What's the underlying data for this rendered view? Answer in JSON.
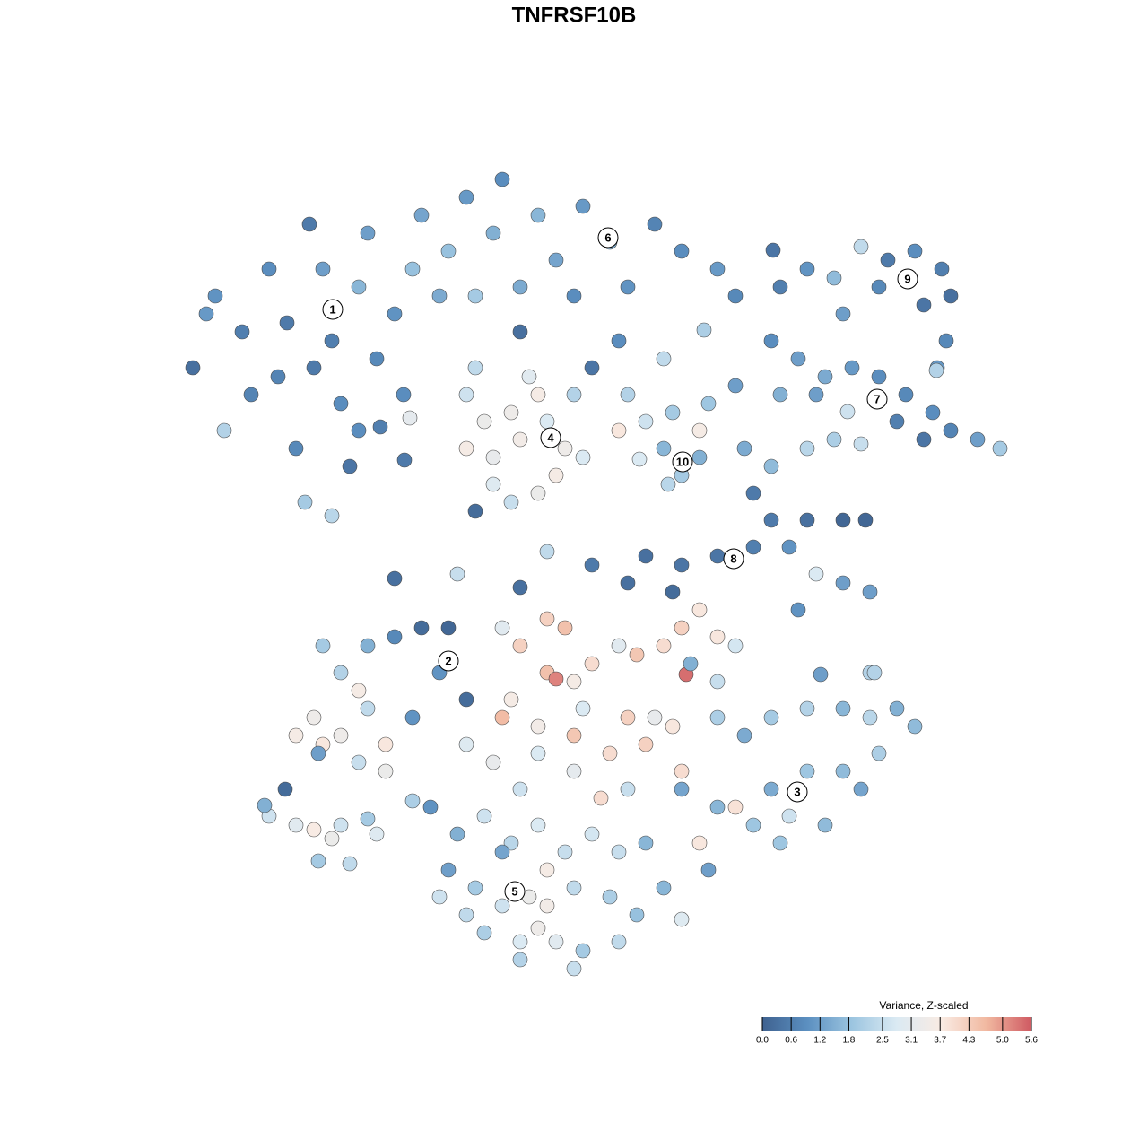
{
  "chart_data": {
    "type": "scatter",
    "title": "TNFRSF10B",
    "xlim": [
      0,
      128
    ],
    "ylim": [
      128,
      0
    ],
    "x": [
      21.5,
      24,
      25,
      27,
      30,
      31,
      33,
      34.5,
      36,
      37,
      38,
      34,
      37,
      40,
      41,
      42,
      44,
      46,
      45,
      39,
      32,
      28,
      23,
      35,
      40,
      47,
      50,
      52,
      55,
      56,
      60,
      62,
      65,
      68,
      70,
      73,
      76,
      80,
      82,
      64,
      58,
      53,
      49,
      69,
      66,
      58,
      74,
      78.5,
      87,
      90,
      93,
      96,
      99,
      102,
      105,
      106,
      103,
      98,
      105.5,
      94,
      86,
      89,
      92,
      95,
      98,
      101,
      104,
      106,
      109,
      111.5,
      100,
      103,
      87,
      91,
      104.5,
      52,
      54,
      52,
      55,
      57,
      58,
      60,
      61,
      63,
      62,
      60,
      57,
      55,
      53,
      64,
      65,
      59,
      53,
      70,
      72,
      75,
      78,
      79,
      74,
      76,
      78,
      74.5,
      71.3,
      82,
      69,
      83,
      86,
      90,
      93,
      96,
      84,
      86,
      90,
      94,
      96.5,
      88,
      91,
      94,
      97,
      89,
      72,
      76,
      80,
      84,
      70,
      75,
      66,
      61,
      58,
      51,
      44,
      36,
      38,
      41,
      44,
      47,
      50,
      49,
      52,
      40,
      41,
      35,
      33,
      36,
      38,
      40,
      43,
      43,
      46,
      35.5,
      56,
      58,
      61,
      63,
      61,
      64,
      66,
      69,
      71,
      74,
      76,
      78,
      80,
      82,
      76.5,
      62,
      57,
      56,
      60,
      65,
      70,
      73,
      75,
      60,
      64,
      68,
      72,
      76,
      70,
      67,
      58,
      55,
      52,
      64,
      77,
      80,
      80,
      83,
      86,
      90,
      94,
      97,
      100,
      102,
      98,
      94,
      90,
      86,
      88,
      84,
      80,
      78,
      76,
      82,
      96,
      92,
      87,
      79,
      97,
      91.5,
      48,
      51,
      54,
      57,
      60,
      63,
      66,
      69,
      72,
      50,
      53,
      56,
      59,
      61,
      64,
      68,
      71,
      74,
      76,
      54,
      58,
      61,
      62,
      65,
      69,
      64,
      58,
      56,
      49,
      52,
      60,
      30,
      33,
      35,
      37,
      38,
      35.5,
      39,
      41,
      42,
      29.5,
      31.8,
      46,
      45.7,
      45.1,
      42.4,
      86.2,
      104.4,
      94.5,
      97.5
    ],
    "y": [
      41,
      33,
      48,
      37,
      30,
      42,
      50,
      25,
      30,
      38,
      45,
      56,
      57.5,
      32,
      26,
      40,
      35,
      30,
      44,
      52,
      36,
      44,
      35,
      41,
      48,
      24,
      28,
      22,
      26,
      20,
      24,
      29,
      23,
      27,
      32,
      25,
      28,
      30,
      33,
      33,
      32,
      33,
      33,
      38,
      41,
      37,
      40,
      36.8,
      32,
      30,
      31,
      27.5,
      29,
      28,
      30,
      33,
      34,
      32,
      38,
      35,
      38,
      40,
      42,
      41,
      42,
      44,
      46,
      48,
      49,
      50,
      47,
      49,
      44,
      44,
      41,
      44,
      47,
      50,
      51,
      46,
      49,
      44,
      47,
      50,
      53,
      55,
      56,
      54,
      57,
      44,
      51,
      42,
      41,
      44,
      47,
      46,
      48,
      45,
      50,
      53,
      51,
      54,
      51.2,
      43,
      48,
      50,
      52,
      50,
      49,
      49.5,
      55,
      58,
      58,
      58,
      58,
      61,
      64,
      65,
      66,
      68,
      62,
      63,
      62,
      61,
      65,
      66,
      63,
      61.5,
      65.5,
      64,
      64.5,
      72,
      75,
      72,
      71,
      70,
      70,
      75,
      78,
      77,
      79,
      80,
      82,
      83,
      82,
      85,
      83,
      86,
      80,
      84,
      70,
      72,
      69,
      70,
      75,
      76,
      74,
      72,
      73,
      72,
      70,
      68,
      71,
      72,
      75.2,
      75.7,
      78,
      80,
      81,
      79,
      80,
      80,
      81,
      84,
      86,
      84,
      83,
      86,
      88,
      89,
      88,
      85,
      83,
      82,
      74,
      76,
      80,
      82,
      80,
      79,
      79,
      80,
      79,
      81,
      84,
      86,
      86,
      88,
      91,
      92,
      90,
      94,
      88,
      90,
      88,
      92,
      94,
      97,
      75,
      75.2,
      90,
      93,
      91,
      94,
      92,
      95,
      93,
      95,
      94,
      97,
      99,
      101,
      100,
      97,
      99,
      100,
      102,
      99,
      102.5,
      104,
      105,
      101,
      105,
      106,
      105,
      108,
      107,
      95,
      100,
      102,
      103.5,
      91,
      92,
      92.5,
      93.5,
      92,
      96,
      96.3,
      91.3,
      93,
      89.8,
      88,
      89.3,
      46.6,
      51.3,
      47.6,
      27.9,
      41.3,
      45.9,
      75
    ],
    "values": [
      0.3,
      1.0,
      2.2,
      0.6,
      0.9,
      0.7,
      0.8,
      0.5,
      1.2,
      0.6,
      0.9,
      2.0,
      2.3,
      1.6,
      1.2,
      0.8,
      1.0,
      1.8,
      0.9,
      0.4,
      0.5,
      0.7,
      1.1,
      0.5,
      0.9,
      1.3,
      1.8,
      1.1,
      1.5,
      0.9,
      1.6,
      1.3,
      1.1,
      1.6,
      1.0,
      0.7,
      0.9,
      1.1,
      0.8,
      0.9,
      1.4,
      2.0,
      1.4,
      0.9,
      0.4,
      0.3,
      2.4,
      2.1,
      0.6,
      1.0,
      1.7,
      2.4,
      0.5,
      0.9,
      0.6,
      0.3,
      0.4,
      0.8,
      0.8,
      1.2,
      0.9,
      1.2,
      1.4,
      1.1,
      0.9,
      0.8,
      0.9,
      0.7,
      1.2,
      2.0,
      0.6,
      0.4,
      1.5,
      1.2,
      1.1,
      2.6,
      3.3,
      3.6,
      3.2,
      3.4,
      3.5,
      3.6,
      2.8,
      3.4,
      3.6,
      3.3,
      2.5,
      2.9,
      0.2,
      2.2,
      2.8,
      3.0,
      2.4,
      2.2,
      2.6,
      2.0,
      3.6,
      1.9,
      1.6,
      2.0,
      1.5,
      2.3,
      2.8,
      1.2,
      3.8,
      1.4,
      1.7,
      2.3,
      2.1,
      2.5,
      0.5,
      0.5,
      0.3,
      0.1,
      0.1,
      1.0,
      2.8,
      1.2,
      1.2,
      1.0,
      0.3,
      0.4,
      0.4,
      0.6,
      0.3,
      0.2,
      0.5,
      2.4,
      0.3,
      2.5,
      0.3,
      2.0,
      2.2,
      1.5,
      0.8,
      0.2,
      0.1,
      1.0,
      0.2,
      3.6,
      2.4,
      3.4,
      3.6,
      3.8,
      3.4,
      2.5,
      3.8,
      3.3,
      1.0,
      1.2,
      3.0,
      4.2,
      4.2,
      4.5,
      4.5,
      3.6,
      4.0,
      3.0,
      4.4,
      4.0,
      4.2,
      3.8,
      3.8,
      2.7,
      5.4,
      5.2,
      3.6,
      4.6,
      3.5,
      2.8,
      4.2,
      3.2,
      3.8,
      2.8,
      3.1,
      4.0,
      4.2,
      4.0,
      2.5,
      4.0,
      2.6,
      3.2,
      2.9,
      4.4,
      1.5,
      2.5,
      2.1,
      1.4,
      2.0,
      2.2,
      1.6,
      2.3,
      1.5,
      1.7,
      2.1,
      1.7,
      1.9,
      1.4,
      2.6,
      1.9,
      1.6,
      3.8,
      1.3,
      3.9,
      1.3,
      1.7,
      1.9,
      1.2,
      2.2,
      1.2,
      1.0,
      1.5,
      2.6,
      2.3,
      2.8,
      2.5,
      2.7,
      2.5,
      1.6,
      1.2,
      2.0,
      2.6,
      3.3,
      3.6,
      2.4,
      2.1,
      1.8,
      1.6,
      2.9,
      2.1,
      2.8,
      3.5,
      3.0,
      2.0,
      2.4,
      2.5,
      2.2,
      1.3,
      2.6,
      2.4,
      3.4,
      2.6,
      3.0,
      3.7,
      3.3,
      2.6,
      2.0,
      2.4,
      2.0,
      2.9,
      1.5,
      0.2,
      2.1,
      3.1,
      0.5,
      0.6,
      0.4,
      2.2,
      2.6,
      2.2
    ],
    "cluster_labels": [
      {
        "label": "1",
        "x": 37.1,
        "y": 34.5
      },
      {
        "label": "2",
        "x": 50,
        "y": 73.7
      },
      {
        "label": "3",
        "x": 88.9,
        "y": 88.3
      },
      {
        "label": "4",
        "x": 61.4,
        "y": 48.8
      },
      {
        "label": "5",
        "x": 57.4,
        "y": 99.4
      },
      {
        "label": "6",
        "x": 67.8,
        "y": 26.5
      },
      {
        "label": "7",
        "x": 97.8,
        "y": 44.5
      },
      {
        "label": "8",
        "x": 81.8,
        "y": 62.3
      },
      {
        "label": "9",
        "x": 101.2,
        "y": 31.1
      },
      {
        "label": "10",
        "x": 76.1,
        "y": 51.5
      }
    ],
    "colorbar": {
      "title": "Variance, Z-scaled",
      "clim": [
        0,
        5.6
      ],
      "colors": [
        "#3f6290",
        "#5b8fc0",
        "#9cc5e0",
        "#dbeaf3",
        "#f9ebe3",
        "#f1b8a0",
        "#cf5a62"
      ],
      "ticks": [
        {
          "value": 0,
          "label": "0.0"
        },
        0.6,
        1.2,
        1.8,
        2.5,
        3.1,
        3.7,
        4.3,
        {
          "value": 5,
          "label": "5.0"
        },
        5.6
      ]
    }
  }
}
